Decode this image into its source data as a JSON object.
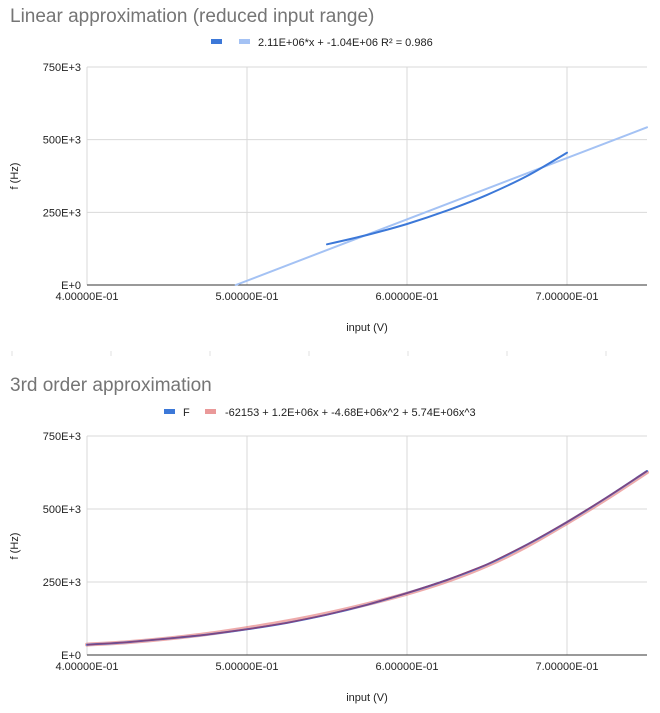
{
  "chart_data": [
    {
      "type": "line",
      "title": "Linear approximation (reduced input range)",
      "xlabel": "input (V)",
      "ylabel": "f (Hz)",
      "xlim": [
        0.4,
        0.75
      ],
      "ylim": [
        0,
        750000
      ],
      "x_ticks": [
        0.4,
        0.5,
        0.6,
        0.7
      ],
      "x_tick_labels": [
        "4.00000E-01",
        "5.00000E-01",
        "6.00000E-01",
        "7.00000E-01"
      ],
      "y_ticks": [
        0,
        250000,
        500000,
        750000
      ],
      "y_tick_labels": [
        "E+0",
        "250E+3",
        "500E+3",
        "750E+3"
      ],
      "grid": true,
      "legend_position": "top",
      "series": [
        {
          "name": "",
          "color": "#3c78d8",
          "x": [
            0.55,
            0.575,
            0.6,
            0.625,
            0.65,
            0.675,
            0.7
          ],
          "y": [
            140000,
            172000,
            210000,
            256000,
            310000,
            375000,
            455000
          ]
        },
        {
          "name": "2.11E+06*x + -1.04E+06 R² = 0.986",
          "color": "#a4c2f4",
          "x": [
            0.493,
            0.75
          ],
          "y": [
            0,
            542500
          ]
        }
      ]
    },
    {
      "type": "line",
      "title": "3rd order approximation",
      "xlabel": "input (V)",
      "ylabel": "f (Hz)",
      "xlim": [
        0.4,
        0.75
      ],
      "ylim": [
        0,
        750000
      ],
      "x_ticks": [
        0.4,
        0.5,
        0.6,
        0.7
      ],
      "x_tick_labels": [
        "4.00000E-01",
        "5.00000E-01",
        "6.00000E-01",
        "7.00000E-01"
      ],
      "y_ticks": [
        0,
        250000,
        500000,
        750000
      ],
      "y_tick_labels": [
        "E+0",
        "250E+3",
        "500E+3",
        "750E+3"
      ],
      "grid": true,
      "legend_position": "top",
      "series": [
        {
          "name": "F",
          "color": "#3c78d8",
          "x": [
            0.4,
            0.425,
            0.45,
            0.475,
            0.5,
            0.525,
            0.55,
            0.575,
            0.6,
            0.625,
            0.65,
            0.675,
            0.7,
            0.725,
            0.75
          ],
          "y": [
            35000,
            44000,
            56000,
            70000,
            88000,
            110000,
            138000,
            172000,
            212000,
            257000,
            310000,
            378000,
            455000,
            540000,
            630000
          ]
        },
        {
          "name": "-62153 + 1.2E+06x + -4.68E+06x^2 + 5.74E+06x^3",
          "color": "#e06666",
          "x": [
            0.4,
            0.425,
            0.45,
            0.475,
            0.5,
            0.525,
            0.55,
            0.575,
            0.6,
            0.625,
            0.65,
            0.675,
            0.7,
            0.725,
            0.75
          ],
          "y": [
            35600,
            43700,
            56100,
            71900,
            92000,
            115000,
            142000,
            174000,
            210000,
            253000,
            306000,
            373000,
            452000,
            536000,
            626000
          ]
        }
      ]
    }
  ]
}
